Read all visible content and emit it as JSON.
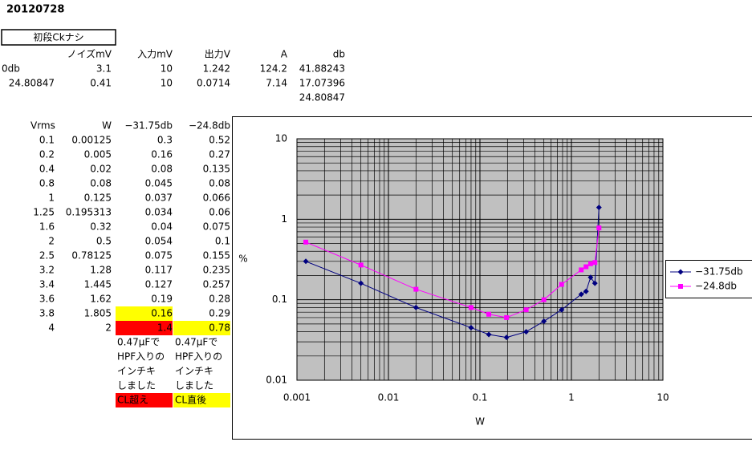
{
  "header": {
    "title": "20120728",
    "label": "初段Ckナシ"
  },
  "table1": {
    "columns": [
      "ノイズmV",
      "入力mV",
      "出力V",
      "A",
      "db"
    ],
    "rows": [
      [
        "0db",
        "3.1",
        "10",
        "1.242",
        "124.2",
        "41.88243"
      ],
      [
        "24.80847",
        "0.41",
        "10",
        "0.0714",
        "7.14",
        "17.07396"
      ]
    ],
    "extra": "24.80847"
  },
  "table2": {
    "columns": [
      "Vrms",
      "W",
      "−31.75db",
      "−24.8db"
    ],
    "rows": [
      [
        "0.1",
        "0.00125",
        "0.3",
        "0.52"
      ],
      [
        "0.2",
        "0.005",
        "0.16",
        "0.27"
      ],
      [
        "0.4",
        "0.02",
        "0.08",
        "0.135"
      ],
      [
        "0.8",
        "0.08",
        "0.045",
        "0.08"
      ],
      [
        "1",
        "0.125",
        "0.037",
        "0.066"
      ],
      [
        "1.25",
        "0.195313",
        "0.034",
        "0.06"
      ],
      [
        "1.6",
        "0.32",
        "0.04",
        "0.075"
      ],
      [
        "2",
        "0.5",
        "0.054",
        "0.1"
      ],
      [
        "2.5",
        "0.78125",
        "0.075",
        "0.155"
      ],
      [
        "3.2",
        "1.28",
        "0.117",
        "0.235"
      ],
      [
        "3.4",
        "1.445",
        "0.127",
        "0.257"
      ],
      [
        "3.6",
        "1.62",
        "0.19",
        "0.28"
      ],
      [
        "3.8",
        "1.805",
        "0.16",
        "0.29"
      ],
      [
        "4",
        "2",
        "1.4",
        "0.78"
      ]
    ],
    "notes": [
      [
        "0.47μFで",
        "HPF入りの",
        "インチキ",
        "しました"
      ],
      [
        "0.47μFで",
        "HPF入りの",
        "インチキ",
        "しました"
      ]
    ],
    "tags": [
      "CL超え",
      "CL直後"
    ]
  },
  "chart_data": {
    "type": "line",
    "xlabel": "W",
    "ylabel": "%",
    "log_x": true,
    "log_y": true,
    "grid": true,
    "legend": "right",
    "xlim": [
      0.001,
      10
    ],
    "ylim": [
      0.01,
      10
    ],
    "xticks": [
      0.001,
      0.01,
      0.1,
      1,
      10
    ],
    "yticks": [
      0.01,
      0.1,
      1,
      10
    ],
    "x": [
      0.00125,
      0.005,
      0.02,
      0.08,
      0.125,
      0.195313,
      0.32,
      0.5,
      0.78125,
      1.28,
      1.445,
      1.62,
      1.805,
      2
    ],
    "series": [
      {
        "name": "−31.75db",
        "color": "#000080",
        "marker": "diamond",
        "values": [
          0.3,
          0.16,
          0.08,
          0.045,
          0.037,
          0.034,
          0.04,
          0.054,
          0.075,
          0.117,
          0.127,
          0.19,
          0.16,
          1.4
        ]
      },
      {
        "name": "−24.8db",
        "color": "#ff00ff",
        "marker": "square",
        "values": [
          0.52,
          0.27,
          0.135,
          0.08,
          0.066,
          0.06,
          0.075,
          0.1,
          0.155,
          0.235,
          0.257,
          0.28,
          0.29,
          0.78
        ]
      }
    ]
  }
}
